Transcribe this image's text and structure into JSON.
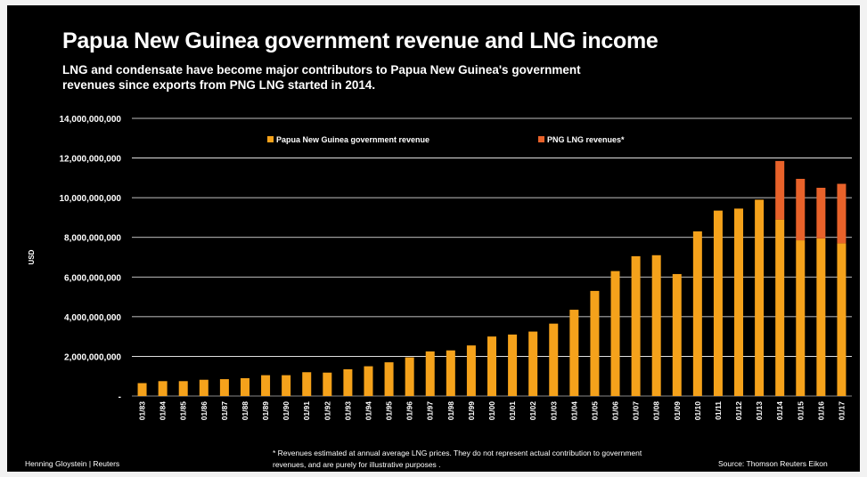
{
  "header": {
    "title": "Papua New Guinea government revenue and LNG income",
    "subtitle": "LNG and condensate have become major contributors to Papua New Guinea's government revenues since exports from PNG LNG started in 2014."
  },
  "footer": {
    "footnote": "* Revenues estimated at annual average LNG prices. They do not represent actual contribution to government revenues, and are purely for illustrative purposes .",
    "credit_left": "Henning Gloystein | Reuters",
    "credit_right": "Source: Thomson Reuters Eikon"
  },
  "colors": {
    "background": "#000000",
    "government_revenue": "#f5a21b",
    "lng_revenue": "#e8622a",
    "gridline": "#ffffff",
    "text": "#ffffff"
  },
  "chart_data": {
    "type": "bar",
    "stacked": true,
    "ylabel": "USD",
    "xlabel": "",
    "ylim": [
      0,
      14000000000
    ],
    "yticks": [
      0,
      2000000000,
      4000000000,
      6000000000,
      8000000000,
      10000000000,
      12000000000,
      14000000000
    ],
    "ytick_labels": [
      "-",
      "2,000,000,000",
      "4,000,000,000",
      "6,000,000,000",
      "8,000,000,000",
      "10,000,000,000",
      "12,000,000,000",
      "14,000,000,000"
    ],
    "grid": true,
    "legend_position": "top-center",
    "categories": [
      "01/83",
      "01/84",
      "01/85",
      "01/86",
      "01/87",
      "01/88",
      "01/89",
      "01/90",
      "01/91",
      "01/92",
      "01/93",
      "01/94",
      "01/95",
      "01/96",
      "01/97",
      "01/98",
      "01/99",
      "01/00",
      "01/01",
      "01/02",
      "01/03",
      "01/04",
      "01/05",
      "01/06",
      "01/07",
      "01/08",
      "01/09",
      "01/10",
      "01/11",
      "01/12",
      "01/13",
      "01/14",
      "01/15",
      "01/16",
      "01/17"
    ],
    "series": [
      {
        "name": "Papua New Guinea government revenue",
        "color": "#f5a21b",
        "values": [
          650000000,
          750000000,
          750000000,
          820000000,
          850000000,
          900000000,
          1050000000,
          1050000000,
          1200000000,
          1180000000,
          1350000000,
          1500000000,
          1700000000,
          1950000000,
          2250000000,
          2300000000,
          2550000000,
          3000000000,
          3100000000,
          3250000000,
          3650000000,
          4350000000,
          5300000000,
          6300000000,
          7050000000,
          7100000000,
          6150000000,
          8300000000,
          9350000000,
          9450000000,
          9900000000,
          8900000000,
          7850000000,
          7950000000,
          7700000000
        ]
      },
      {
        "name": "PNG LNG revenues*",
        "color": "#e8622a",
        "values": [
          0,
          0,
          0,
          0,
          0,
          0,
          0,
          0,
          0,
          0,
          0,
          0,
          0,
          0,
          0,
          0,
          0,
          0,
          0,
          0,
          0,
          0,
          0,
          0,
          0,
          0,
          0,
          0,
          0,
          0,
          0,
          2950000000,
          3100000000,
          2550000000,
          3000000000
        ]
      }
    ]
  }
}
